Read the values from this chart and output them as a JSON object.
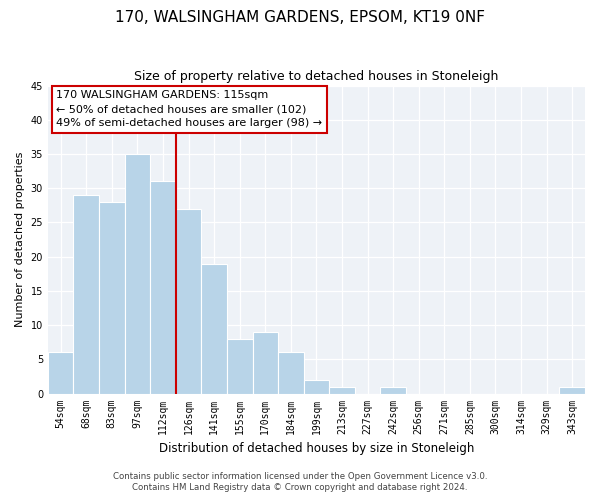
{
  "title": "170, WALSINGHAM GARDENS, EPSOM, KT19 0NF",
  "subtitle": "Size of property relative to detached houses in Stoneleigh",
  "xlabel": "Distribution of detached houses by size in Stoneleigh",
  "ylabel": "Number of detached properties",
  "bar_color": "#b8d4e8",
  "vline_color": "#cc0000",
  "categories": [
    "54sqm",
    "68sqm",
    "83sqm",
    "97sqm",
    "112sqm",
    "126sqm",
    "141sqm",
    "155sqm",
    "170sqm",
    "184sqm",
    "199sqm",
    "213sqm",
    "227sqm",
    "242sqm",
    "256sqm",
    "271sqm",
    "285sqm",
    "300sqm",
    "314sqm",
    "329sqm",
    "343sqm"
  ],
  "values": [
    6,
    29,
    28,
    35,
    31,
    27,
    19,
    8,
    9,
    6,
    2,
    1,
    0,
    1,
    0,
    0,
    0,
    0,
    0,
    0,
    1
  ],
  "ylim": [
    0,
    45
  ],
  "yticks": [
    0,
    5,
    10,
    15,
    20,
    25,
    30,
    35,
    40,
    45
  ],
  "annotation_title": "170 WALSINGHAM GARDENS: 115sqm",
  "annotation_line1": "← 50% of detached houses are smaller (102)",
  "annotation_line2": "49% of semi-detached houses are larger (98) →",
  "footer1": "Contains HM Land Registry data © Crown copyright and database right 2024.",
  "footer2": "Contains public sector information licensed under the Open Government Licence v3.0.",
  "background_color": "#eef2f7"
}
